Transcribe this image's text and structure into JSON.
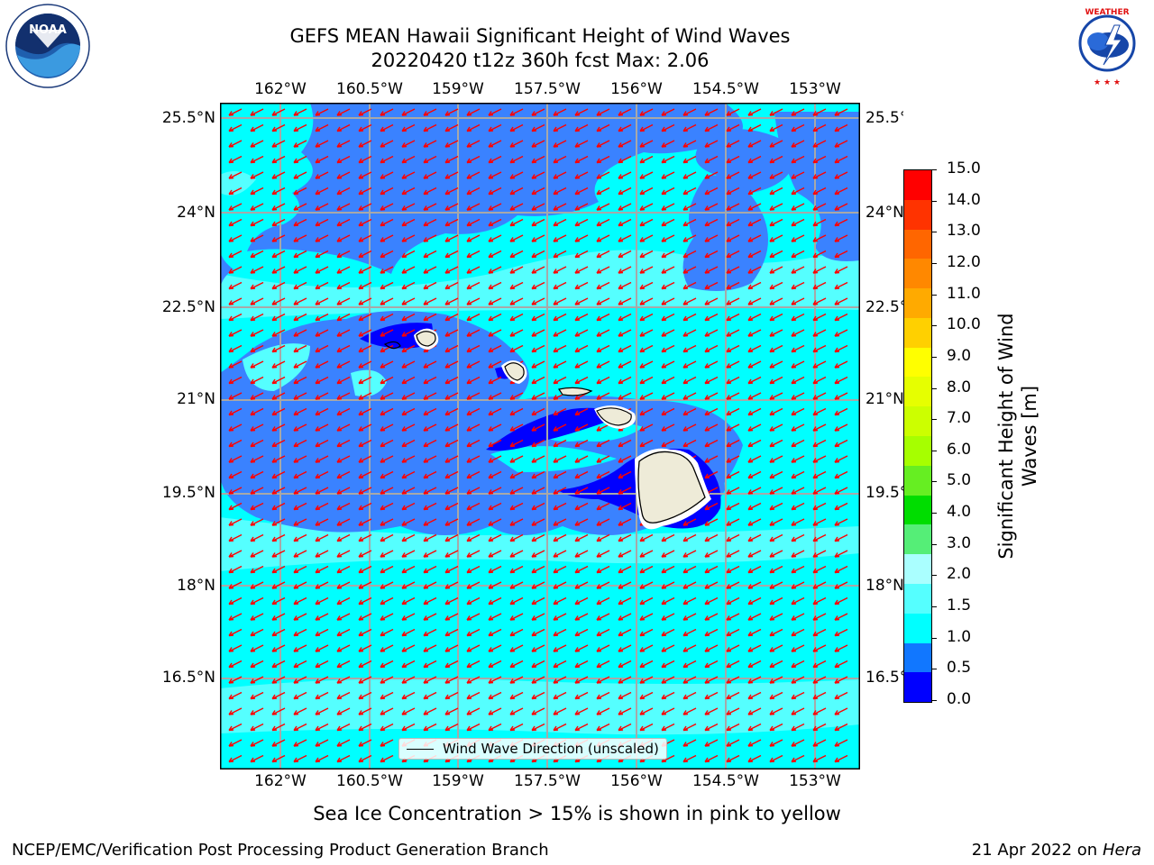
{
  "title": {
    "line1": "GEFS MEAN Hawaii Significant Height of Wind Waves",
    "line2": "20220420 t12z 360h fcst   Max: 2.06"
  },
  "logos": {
    "left": {
      "icon": "noaa-logo",
      "text": "NOAA"
    },
    "right": {
      "icon": "national-weather-service-logo",
      "text": "NATIONAL WEATHER SERVICE"
    }
  },
  "lon_ticks": [
    "162°W",
    "160.5°W",
    "159°W",
    "157.5°W",
    "156°W",
    "154.5°W",
    "153°W"
  ],
  "lat_ticks": [
    "25.5°N",
    "24°N",
    "22.5°N",
    "21°N",
    "19.5°N",
    "18°N",
    "16.5°N"
  ],
  "legend": {
    "label": "Wind Wave Direction (unscaled)"
  },
  "colorbar": {
    "title_line1": "Significant Height of Wind",
    "title_line2": "Waves [m]",
    "ticks": [
      "15.0",
      "14.0",
      "13.0",
      "12.0",
      "11.0",
      "10.0",
      "9.0",
      "8.0",
      "7.0",
      "6.0",
      "5.0",
      "4.0",
      "3.0",
      "2.0",
      "1.5",
      "1.0",
      "0.5",
      "0.0"
    ],
    "colors": [
      "#ff0000",
      "#ff3300",
      "#ff6600",
      "#ff8800",
      "#ffaa00",
      "#ffd000",
      "#ffff00",
      "#e6ff00",
      "#ccff00",
      "#a6ff00",
      "#66ee22",
      "#00dd00",
      "#55ee77",
      "#aaffff",
      "#55ffff",
      "#00ffff",
      "#1177ff",
      "#0000ff"
    ]
  },
  "subcaption": "Sea Ice Concentration > 15% is shown in pink to yellow",
  "footer": {
    "left": "NCEP/EMC/Verification Post Processing Product Generation Branch",
    "right_date": "21 Apr 2022 on ",
    "right_host": "Hera"
  },
  "map_colors": {
    "light": "#55ffff",
    "cyan": "#00ffff",
    "mid": "#3a82ff",
    "dark": "#0000ff",
    "land": "#eeebd8",
    "arrow": "#ff0000",
    "grid": "#a8a8a8"
  }
}
